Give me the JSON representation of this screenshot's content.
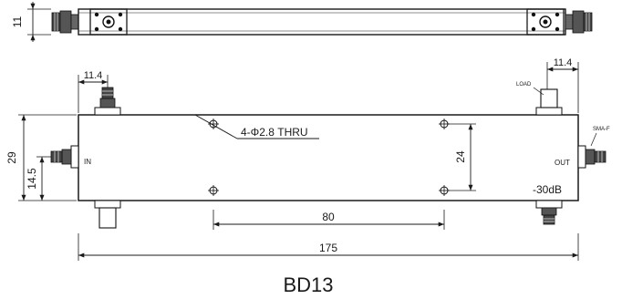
{
  "drawing": {
    "part_number": "BD13",
    "ports": {
      "input": "IN",
      "output": "OUT",
      "load": "LOAD",
      "connector": "SMA-F"
    },
    "hole_note": "4-Φ2.8 THRU",
    "coupling": "-30dB",
    "dimensions": {
      "top_height": "11",
      "connector_offset_left": "11.4",
      "connector_offset_right": "11.4",
      "body_height": "29",
      "in_port_height": "14.5",
      "hole_vertical": "24",
      "hole_horizontal": "80",
      "overall_length": "175"
    }
  },
  "colors": {
    "line": "#1a1a1a",
    "background": "#ffffff"
  }
}
